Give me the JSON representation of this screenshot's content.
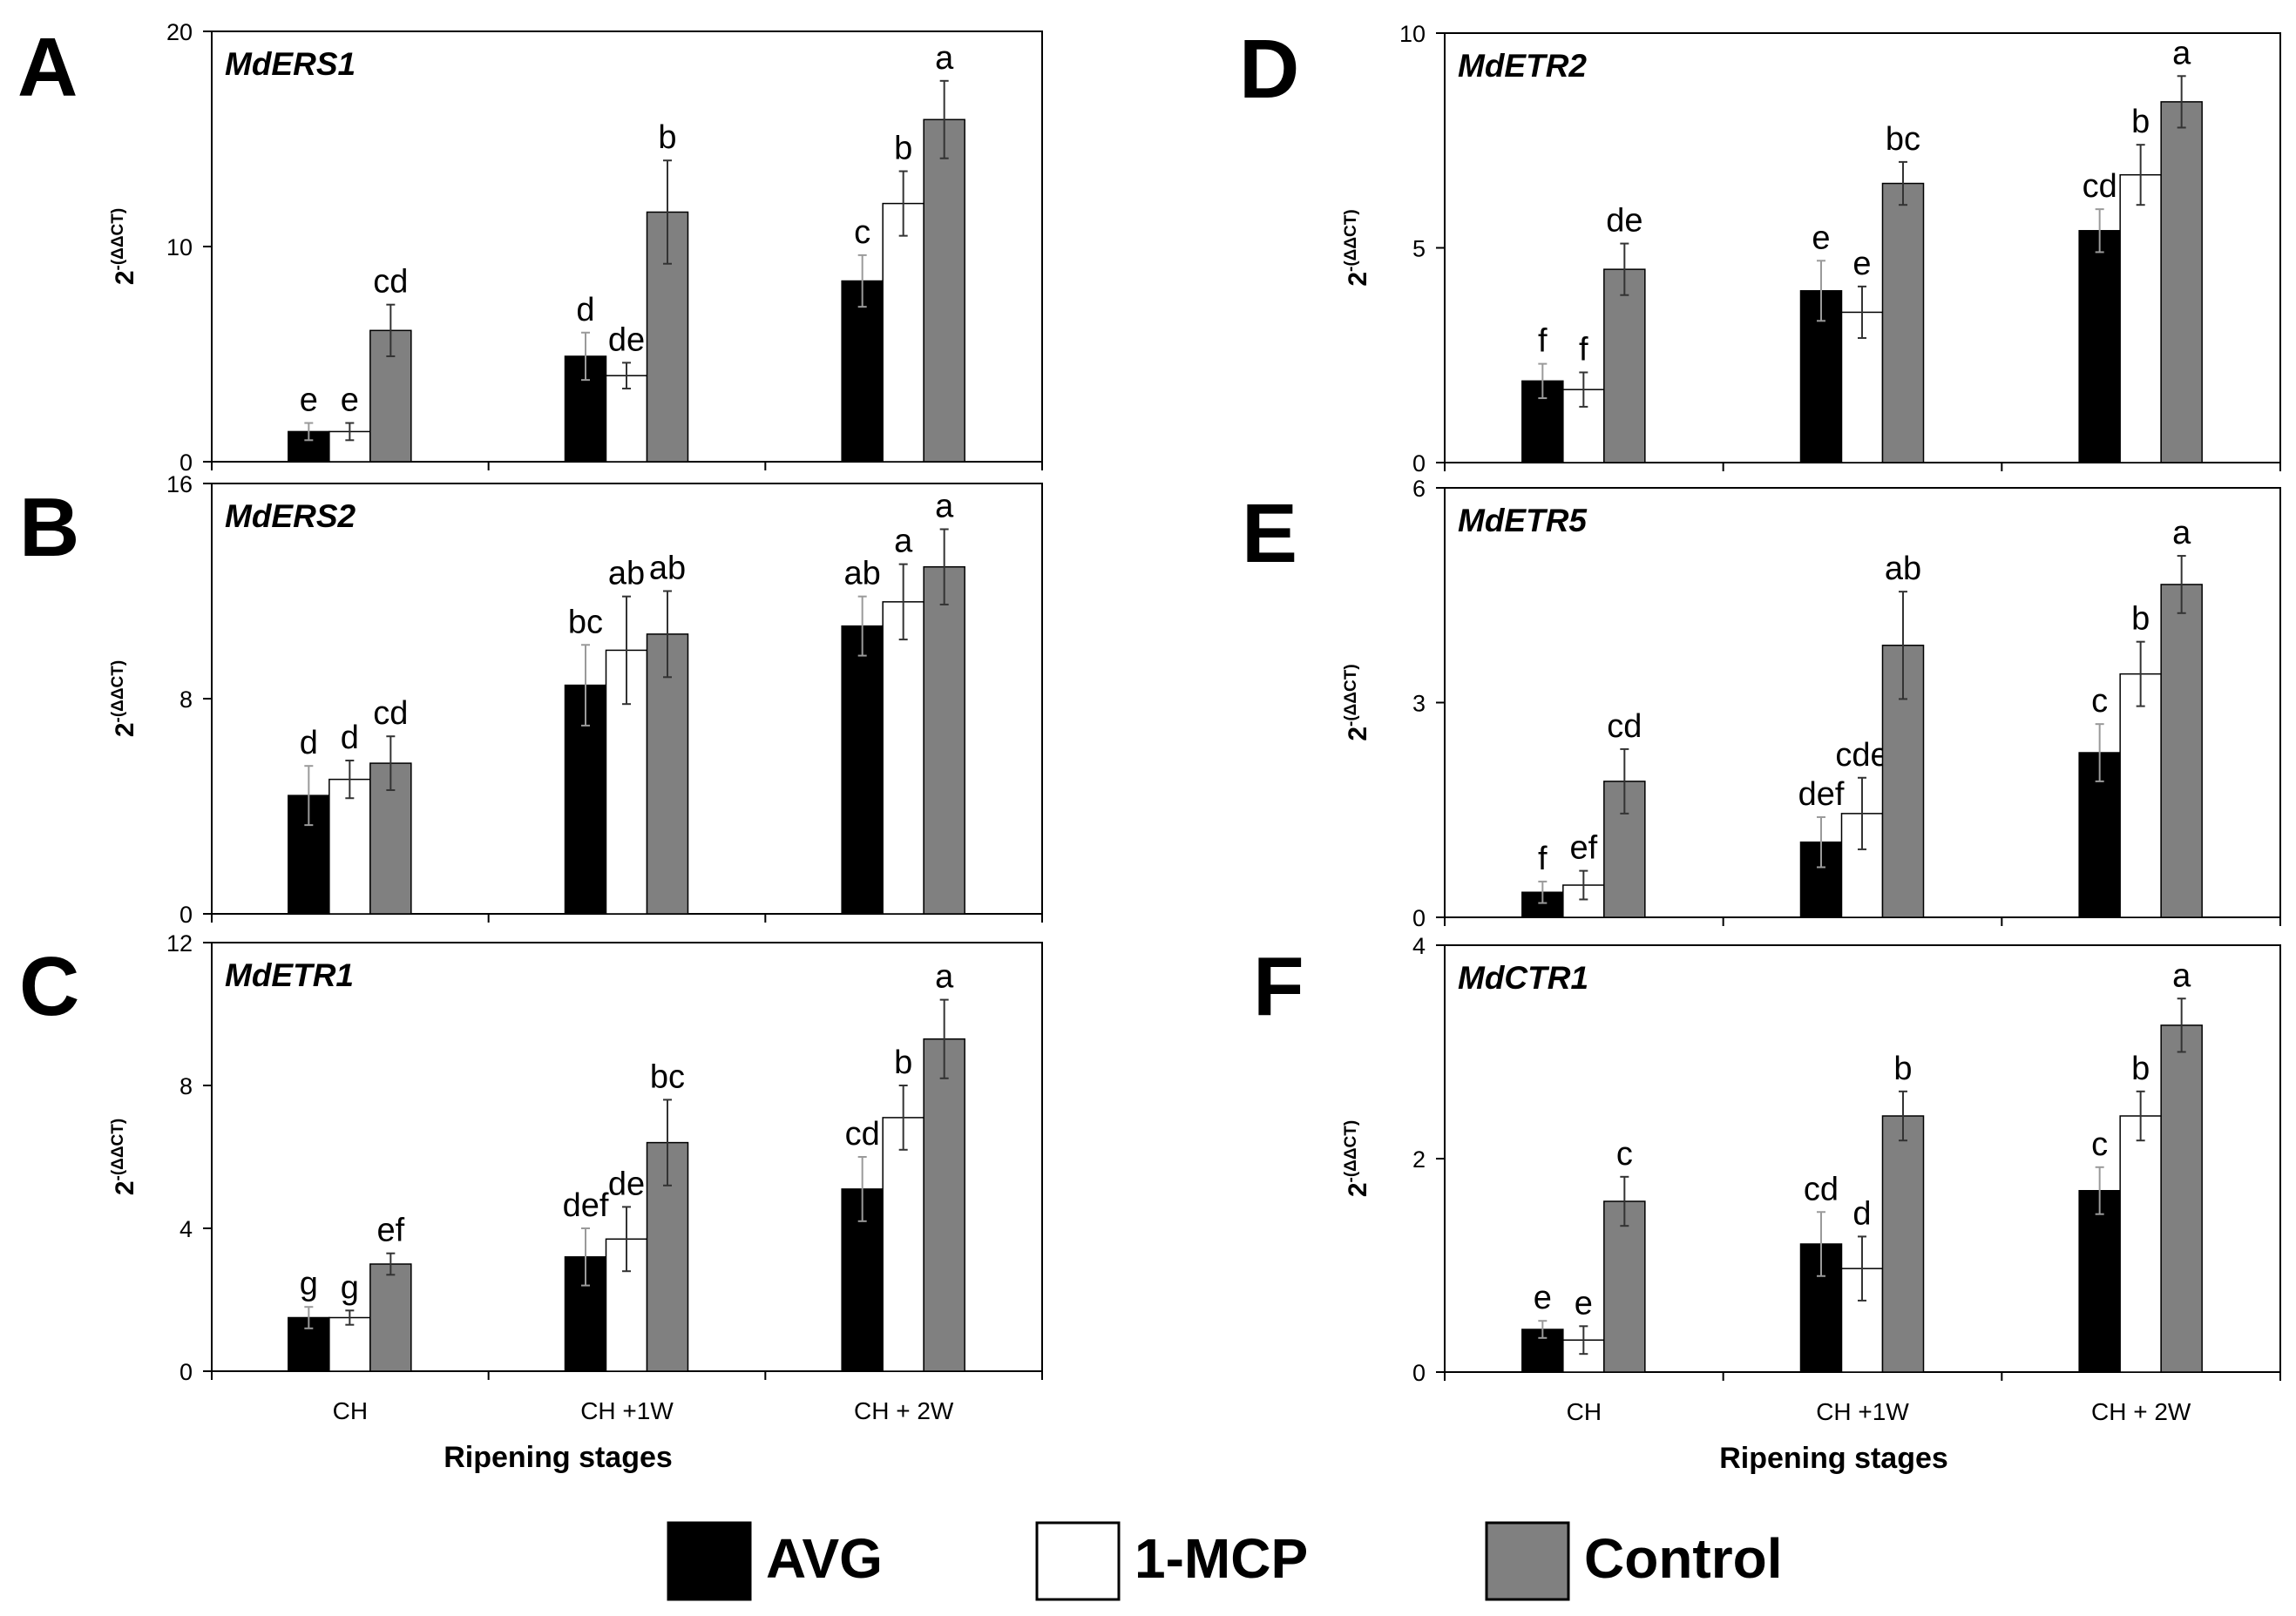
{
  "colors": {
    "AVG": "#000000",
    "1-MCP": "#ffffff",
    "Control": "#808080",
    "axis": "#000000"
  },
  "chart_data": [
    {
      "type": "bar",
      "panel": "A",
      "title": "MdERS1",
      "categories": [
        "CH",
        "CH +1W",
        "CH + 2W"
      ],
      "ylim": [
        0,
        20
      ],
      "yticks": [
        0,
        10,
        20
      ],
      "ylabel": "2-(ΔΔCT)",
      "ylabel_base": "2",
      "ylabel_exp": "-(ΔΔCT)",
      "xlabel": "",
      "show_xticklabels": false,
      "series": [
        {
          "name": "AVG",
          "values": [
            1.4,
            4.9,
            8.4
          ],
          "errors": [
            0.4,
            1.1,
            1.2
          ],
          "labels": [
            "e",
            "d",
            "c"
          ]
        },
        {
          "name": "1-MCP",
          "values": [
            1.4,
            4.0,
            12.0
          ],
          "errors": [
            0.4,
            0.6,
            1.5
          ],
          "labels": [
            "e",
            "de",
            "b"
          ]
        },
        {
          "name": "Control",
          "values": [
            6.1,
            11.6,
            15.9
          ],
          "errors": [
            1.2,
            2.4,
            1.8
          ],
          "labels": [
            "cd",
            "b",
            "a"
          ]
        }
      ]
    },
    {
      "type": "bar",
      "panel": "B",
      "title": "MdERS2",
      "categories": [
        "CH",
        "CH +1W",
        "CH + 2W"
      ],
      "ylim": [
        0,
        16
      ],
      "yticks": [
        0,
        8,
        16
      ],
      "ylabel": "2-(ΔΔCT)",
      "ylabel_base": "2",
      "ylabel_exp": "-(ΔΔCT)",
      "xlabel": "",
      "show_xticklabels": false,
      "series": [
        {
          "name": "AVG",
          "values": [
            4.4,
            8.5,
            10.7
          ],
          "errors": [
            1.1,
            1.5,
            1.1
          ],
          "labels": [
            "d",
            "bc",
            "ab"
          ]
        },
        {
          "name": "1-MCP",
          "values": [
            5.0,
            9.8,
            11.6
          ],
          "errors": [
            0.7,
            2.0,
            1.4
          ],
          "labels": [
            "d",
            "ab",
            "a"
          ]
        },
        {
          "name": "Control",
          "values": [
            5.6,
            10.4,
            12.9
          ],
          "errors": [
            1.0,
            1.6,
            1.4
          ],
          "labels": [
            "cd",
            "ab",
            "a"
          ]
        }
      ]
    },
    {
      "type": "bar",
      "panel": "C",
      "title": "MdETR1",
      "categories": [
        "CH",
        "CH +1W",
        "CH + 2W"
      ],
      "ylim": [
        0,
        12
      ],
      "yticks": [
        0,
        4,
        8,
        12
      ],
      "ylabel": "2-(ΔΔCT)",
      "ylabel_base": "2",
      "ylabel_exp": "-(ΔΔCT)",
      "xlabel": "Ripening stages",
      "show_xticklabels": true,
      "series": [
        {
          "name": "AVG",
          "values": [
            1.5,
            3.2,
            5.1
          ],
          "errors": [
            0.3,
            0.8,
            0.9
          ],
          "labels": [
            "g",
            "def",
            "cd"
          ]
        },
        {
          "name": "1-MCP",
          "values": [
            1.5,
            3.7,
            7.1
          ],
          "errors": [
            0.2,
            0.9,
            0.9
          ],
          "labels": [
            "g",
            "de",
            "b"
          ]
        },
        {
          "name": "Control",
          "values": [
            3.0,
            6.4,
            9.3
          ],
          "errors": [
            0.3,
            1.2,
            1.1
          ],
          "labels": [
            "ef",
            "bc",
            "a"
          ]
        }
      ]
    },
    {
      "type": "bar",
      "panel": "D",
      "title": "MdETR2",
      "categories": [
        "CH",
        "CH +1W",
        "CH + 2W"
      ],
      "ylim": [
        0,
        10
      ],
      "yticks": [
        0,
        5,
        10
      ],
      "ylabel": "2-(ΔΔCT)",
      "ylabel_base": "2",
      "ylabel_exp": "-(ΔΔCT)",
      "xlabel": "",
      "show_xticklabels": false,
      "series": [
        {
          "name": "AVG",
          "values": [
            1.9,
            4.0,
            5.4
          ],
          "errors": [
            0.4,
            0.7,
            0.5
          ],
          "labels": [
            "f",
            "e",
            "cd"
          ]
        },
        {
          "name": "1-MCP",
          "values": [
            1.7,
            3.5,
            6.7
          ],
          "errors": [
            0.4,
            0.6,
            0.7
          ],
          "labels": [
            "f",
            "e",
            "b"
          ]
        },
        {
          "name": "Control",
          "values": [
            4.5,
            6.5,
            8.4
          ],
          "errors": [
            0.6,
            0.5,
            0.6
          ],
          "labels": [
            "de",
            "bc",
            "a"
          ]
        }
      ]
    },
    {
      "type": "bar",
      "panel": "E",
      "title": "MdETR5",
      "categories": [
        "CH",
        "CH +1W",
        "CH + 2W"
      ],
      "ylim": [
        0,
        6
      ],
      "yticks": [
        0,
        3,
        6
      ],
      "ylabel": "2-(ΔΔCT)",
      "ylabel_base": "2",
      "ylabel_exp": "-(ΔΔCT)",
      "xlabel": "",
      "show_xticklabels": false,
      "series": [
        {
          "name": "AVG",
          "values": [
            0.35,
            1.05,
            2.3
          ],
          "errors": [
            0.15,
            0.35,
            0.4
          ],
          "labels": [
            "f",
            "def",
            "c"
          ]
        },
        {
          "name": "1-MCP",
          "values": [
            0.45,
            1.45,
            3.4
          ],
          "errors": [
            0.2,
            0.5,
            0.45
          ],
          "labels": [
            "ef",
            "cde",
            "b"
          ]
        },
        {
          "name": "Control",
          "values": [
            1.9,
            3.8,
            4.65
          ],
          "errors": [
            0.45,
            0.75,
            0.4
          ],
          "labels": [
            "cd",
            "ab",
            "a"
          ]
        }
      ]
    },
    {
      "type": "bar",
      "panel": "F",
      "title": "MdCTR1",
      "categories": [
        "CH",
        "CH +1W",
        "CH + 2W"
      ],
      "ylim": [
        0,
        4
      ],
      "yticks": [
        0,
        2,
        4
      ],
      "ylabel": "2-(ΔΔCT)",
      "ylabel_base": "2",
      "ylabel_exp": "-(ΔΔCT)",
      "xlabel": "Ripening stages",
      "show_xticklabels": true,
      "series": [
        {
          "name": "AVG",
          "values": [
            0.4,
            1.2,
            1.7
          ],
          "errors": [
            0.08,
            0.3,
            0.22
          ],
          "labels": [
            "e",
            "cd",
            "c"
          ]
        },
        {
          "name": "1-MCP",
          "values": [
            0.3,
            0.97,
            2.4
          ],
          "errors": [
            0.13,
            0.3,
            0.23
          ],
          "labels": [
            "e",
            "d",
            "b"
          ]
        },
        {
          "name": "Control",
          "values": [
            1.6,
            2.4,
            3.25
          ],
          "errors": [
            0.23,
            0.23,
            0.25
          ],
          "labels": [
            "c",
            "b",
            "a"
          ]
        }
      ]
    }
  ],
  "legend": {
    "position": "bottom-center",
    "entries": [
      {
        "name": "AVG",
        "label": "AVG"
      },
      {
        "name": "1-MCP",
        "label": "1-MCP"
      },
      {
        "name": "Control",
        "label": "Control"
      }
    ]
  }
}
